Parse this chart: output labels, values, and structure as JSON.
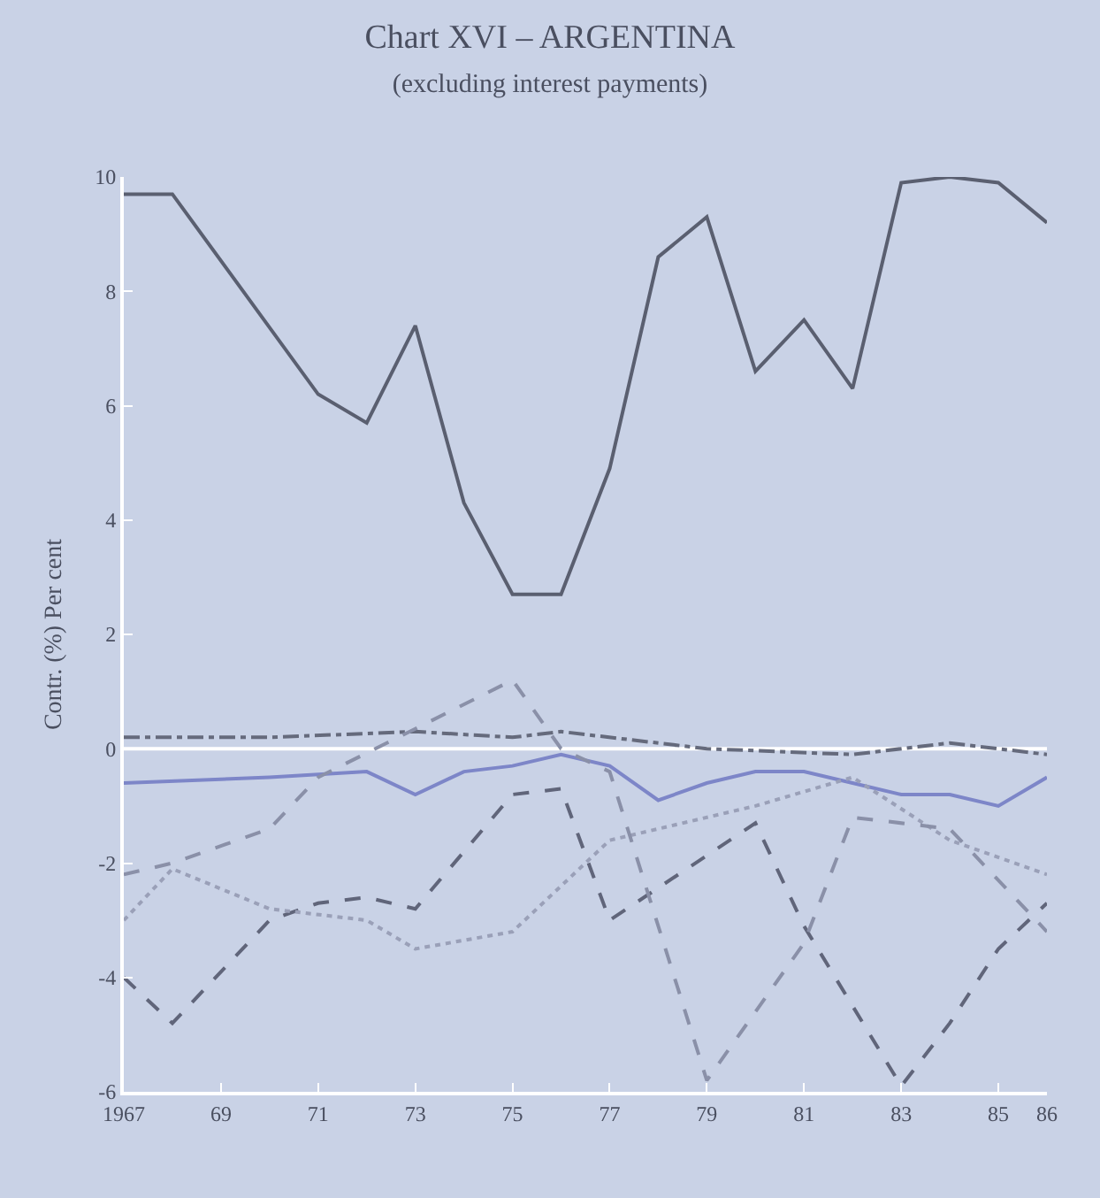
{
  "chart_data": {
    "type": "line",
    "title": "Chart XVI – ARGENTINA",
    "subtitle": "(excluding interest payments)",
    "ylabel": "Contr. (%) Per cent",
    "xlim": [
      1967,
      1986
    ],
    "xticks": [
      1967,
      {
        "value": 1969,
        "label": "69"
      },
      {
        "value": 1971,
        "label": "71"
      },
      {
        "value": 1973,
        "label": "73"
      },
      {
        "value": 1975,
        "label": "75"
      },
      {
        "value": 1977,
        "label": "77"
      },
      {
        "value": 1979,
        "label": "79"
      },
      {
        "value": 1981,
        "label": "81"
      },
      {
        "value": 1983,
        "label": "83"
      },
      {
        "value": 1985,
        "label": "85"
      },
      {
        "value": 1986,
        "label": "86"
      }
    ],
    "ylim": [
      -6,
      10
    ],
    "yticks": [
      -6,
      -4,
      -2,
      0,
      2,
      4,
      6,
      8,
      10
    ],
    "grid": false,
    "marker": "none",
    "ref_lines": [
      {
        "axis": "y",
        "value": 0,
        "color": "#ffffff"
      }
    ],
    "series": [
      {
        "color": "#5a5f70",
        "line_style": "solid",
        "x": [
          1967,
          1968,
          1971,
          1972,
          1973,
          1974,
          1975,
          1976,
          1977,
          1978,
          1979,
          1980,
          1981,
          1982,
          1983,
          1984,
          1985,
          1986
        ],
        "values": [
          9.7,
          9.7,
          6.2,
          5.7,
          7.4,
          4.3,
          2.7,
          2.7,
          4.9,
          8.6,
          9.3,
          6.6,
          7.5,
          6.3,
          9.9,
          10,
          9.9,
          9.2
        ]
      },
      {
        "color": "#656a7c",
        "line_style": "dashdot",
        "x": [
          1967,
          1970,
          1973,
          1975,
          1976,
          1979,
          1982,
          1984,
          1986
        ],
        "values": [
          0.2,
          0.2,
          0.3,
          0.2,
          0.3,
          0,
          -0.1,
          0.1,
          -0.1
        ]
      },
      {
        "color": "#7d86c8",
        "line_style": "solid",
        "x": [
          1967,
          1970,
          1972,
          1973,
          1974,
          1975,
          1976,
          1977,
          1978,
          1979,
          1980,
          1981,
          1982,
          1983,
          1984,
          1985,
          1986
        ],
        "values": [
          -0.6,
          -0.5,
          -0.4,
          -0.8,
          -0.4,
          -0.3,
          -0.1,
          -0.3,
          -0.9,
          -0.6,
          -0.4,
          -0.4,
          -0.6,
          -0.8,
          -0.8,
          -1.0,
          -0.5
        ]
      },
      {
        "color": "#60657a",
        "line_style": "dash",
        "x": [
          1967,
          1968,
          1970,
          1971,
          1972,
          1973,
          1975,
          1976,
          1977,
          1980,
          1981,
          1983,
          1984,
          1985,
          1986
        ],
        "values": [
          -4.0,
          -4.8,
          -3.0,
          -2.7,
          -2.6,
          -2.8,
          -0.8,
          -0.7,
          -3.0,
          -1.3,
          -3.1,
          -5.9,
          -4.8,
          -3.5,
          -2.7
        ]
      },
      {
        "color": "#9aa0b8",
        "line_style": "dot",
        "x": [
          1967,
          1968,
          1970,
          1972,
          1973,
          1975,
          1977,
          1978,
          1980,
          1982,
          1984,
          1986
        ],
        "values": [
          -3.0,
          -2.1,
          -2.8,
          -3.0,
          -3.5,
          -3.2,
          -1.6,
          -1.4,
          -1.0,
          -0.5,
          -1.6,
          -2.2
        ]
      },
      {
        "color": "#8a90a8",
        "line_style": "dash",
        "x": [
          1967,
          1968,
          1970,
          1971,
          1975,
          1976,
          1977,
          1979,
          1981,
          1982,
          1984,
          1986
        ],
        "values": [
          -2.2,
          -2.0,
          -1.4,
          -0.5,
          1.2,
          0,
          -0.4,
          -5.8,
          -3.4,
          -1.2,
          -1.4,
          -3.2
        ]
      }
    ]
  }
}
